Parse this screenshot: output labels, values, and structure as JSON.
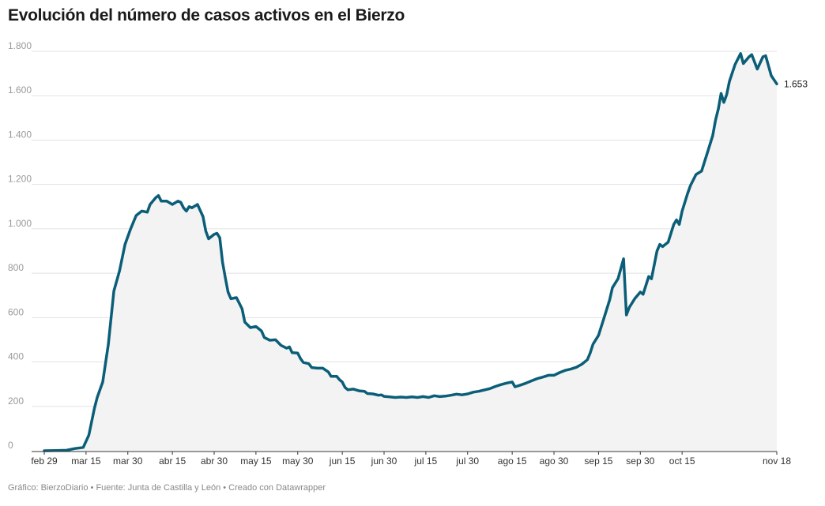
{
  "title": "Evolución del número de casos activos en el Bierzo",
  "footer": "Gráfico: BierzoDiario • Fuente: Junta de Castilla y León • Creado con Datawrapper",
  "colors": {
    "line": "#0b5e78",
    "area": "#f3f3f3",
    "grid": "#e2e2e2",
    "axis": "#333333"
  },
  "chart_data": {
    "type": "area",
    "title": "Evolución del número de casos activos en el Bierzo",
    "xlabel": "",
    "ylabel": "",
    "ylim": [
      0,
      1800
    ],
    "yticks": [
      0,
      200,
      400,
      600,
      800,
      1000,
      1200,
      1400,
      1600,
      1800
    ],
    "ytick_labels": [
      "0",
      "200",
      "400",
      "600",
      "800",
      "1.000",
      "1.200",
      "1.400",
      "1.600",
      "1.800"
    ],
    "xlim": [
      "2020-02-29",
      "2020-11-18"
    ],
    "xticks": [
      {
        "date": "2020-02-29",
        "label": "feb 29"
      },
      {
        "date": "2020-03-15",
        "label": "mar 15"
      },
      {
        "date": "2020-03-30",
        "label": "mar 30"
      },
      {
        "date": "2020-04-15",
        "label": "abr 15"
      },
      {
        "date": "2020-04-30",
        "label": "abr 30"
      },
      {
        "date": "2020-05-15",
        "label": "may 15"
      },
      {
        "date": "2020-05-30",
        "label": "may 30"
      },
      {
        "date": "2020-06-15",
        "label": "jun 15"
      },
      {
        "date": "2020-06-30",
        "label": "jun 30"
      },
      {
        "date": "2020-07-15",
        "label": "jul 15"
      },
      {
        "date": "2020-07-30",
        "label": "jul 30"
      },
      {
        "date": "2020-08-15",
        "label": "ago 15"
      },
      {
        "date": "2020-08-30",
        "label": "ago 30"
      },
      {
        "date": "2020-09-15",
        "label": "sep 15"
      },
      {
        "date": "2020-09-30",
        "label": "sep 30"
      },
      {
        "date": "2020-10-15",
        "label": "oct 15"
      },
      {
        "date": "2020-11-18",
        "label": "nov 18"
      }
    ],
    "end_label": "1.653",
    "grid": true,
    "series": [
      {
        "points": [
          [
            "2020-02-29",
            0
          ],
          [
            "2020-03-04",
            1
          ],
          [
            "2020-03-08",
            2
          ],
          [
            "2020-03-11",
            10
          ],
          [
            "2020-03-14",
            15
          ],
          [
            "2020-03-16",
            70
          ],
          [
            "2020-03-18",
            190
          ],
          [
            "2020-03-19",
            240
          ],
          [
            "2020-03-21",
            310
          ],
          [
            "2020-03-23",
            480
          ],
          [
            "2020-03-25",
            720
          ],
          [
            "2020-03-27",
            810
          ],
          [
            "2020-03-29",
            930
          ],
          [
            "2020-03-31",
            1000
          ],
          [
            "2020-04-02",
            1060
          ],
          [
            "2020-04-04",
            1080
          ],
          [
            "2020-04-06",
            1075
          ],
          [
            "2020-04-07",
            1110
          ],
          [
            "2020-04-09",
            1140
          ],
          [
            "2020-04-10",
            1150
          ],
          [
            "2020-04-11",
            1125
          ],
          [
            "2020-04-13",
            1125
          ],
          [
            "2020-04-15",
            1110
          ],
          [
            "2020-04-17",
            1125
          ],
          [
            "2020-04-18",
            1120
          ],
          [
            "2020-04-19",
            1095
          ],
          [
            "2020-04-20",
            1080
          ],
          [
            "2020-04-21",
            1100
          ],
          [
            "2020-04-22",
            1095
          ],
          [
            "2020-04-24",
            1110
          ],
          [
            "2020-04-26",
            1055
          ],
          [
            "2020-04-27",
            990
          ],
          [
            "2020-04-28",
            955
          ],
          [
            "2020-04-30",
            975
          ],
          [
            "2020-05-01",
            980
          ],
          [
            "2020-05-02",
            960
          ],
          [
            "2020-05-03",
            850
          ],
          [
            "2020-05-04",
            780
          ],
          [
            "2020-05-05",
            715
          ],
          [
            "2020-05-06",
            685
          ],
          [
            "2020-05-08",
            690
          ],
          [
            "2020-05-10",
            640
          ],
          [
            "2020-05-11",
            580
          ],
          [
            "2020-05-13",
            555
          ],
          [
            "2020-05-15",
            560
          ],
          [
            "2020-05-17",
            540
          ],
          [
            "2020-05-18",
            510
          ],
          [
            "2020-05-20",
            498
          ],
          [
            "2020-05-22",
            500
          ],
          [
            "2020-05-24",
            475
          ],
          [
            "2020-05-26",
            462
          ],
          [
            "2020-05-27",
            468
          ],
          [
            "2020-05-28",
            442
          ],
          [
            "2020-05-30",
            440
          ],
          [
            "2020-05-31",
            415
          ],
          [
            "2020-06-01",
            398
          ],
          [
            "2020-06-03",
            392
          ],
          [
            "2020-06-04",
            375
          ],
          [
            "2020-06-06",
            372
          ],
          [
            "2020-06-08",
            372
          ],
          [
            "2020-06-10",
            355
          ],
          [
            "2020-06-11",
            335
          ],
          [
            "2020-06-13",
            335
          ],
          [
            "2020-06-14",
            320
          ],
          [
            "2020-06-15",
            310
          ],
          [
            "2020-06-16",
            285
          ],
          [
            "2020-06-17",
            275
          ],
          [
            "2020-06-19",
            278
          ],
          [
            "2020-06-21",
            270
          ],
          [
            "2020-06-23",
            268
          ],
          [
            "2020-06-24",
            258
          ],
          [
            "2020-06-26",
            256
          ],
          [
            "2020-06-28",
            250
          ],
          [
            "2020-06-29",
            252
          ],
          [
            "2020-06-30",
            245
          ],
          [
            "2020-07-02",
            243
          ],
          [
            "2020-07-04",
            240
          ],
          [
            "2020-07-06",
            242
          ],
          [
            "2020-07-08",
            240
          ],
          [
            "2020-07-10",
            243
          ],
          [
            "2020-07-12",
            240
          ],
          [
            "2020-07-14",
            244
          ],
          [
            "2020-07-16",
            240
          ],
          [
            "2020-07-18",
            248
          ],
          [
            "2020-07-20",
            244
          ],
          [
            "2020-07-22",
            246
          ],
          [
            "2020-07-24",
            250
          ],
          [
            "2020-07-26",
            255
          ],
          [
            "2020-07-28",
            252
          ],
          [
            "2020-07-30",
            256
          ],
          [
            "2020-08-01",
            264
          ],
          [
            "2020-08-03",
            268
          ],
          [
            "2020-08-05",
            274
          ],
          [
            "2020-08-07",
            280
          ],
          [
            "2020-08-09",
            290
          ],
          [
            "2020-08-11",
            298
          ],
          [
            "2020-08-13",
            305
          ],
          [
            "2020-08-15",
            310
          ],
          [
            "2020-08-16",
            288
          ],
          [
            "2020-08-18",
            296
          ],
          [
            "2020-08-20",
            305
          ],
          [
            "2020-08-22",
            315
          ],
          [
            "2020-08-24",
            325
          ],
          [
            "2020-08-26",
            332
          ],
          [
            "2020-08-28",
            340
          ],
          [
            "2020-08-30",
            340
          ],
          [
            "2020-09-01",
            352
          ],
          [
            "2020-09-03",
            362
          ],
          [
            "2020-09-05",
            368
          ],
          [
            "2020-09-07",
            376
          ],
          [
            "2020-09-09",
            390
          ],
          [
            "2020-09-11",
            410
          ],
          [
            "2020-09-12",
            440
          ],
          [
            "2020-09-13",
            480
          ],
          [
            "2020-09-15",
            520
          ],
          [
            "2020-09-17",
            600
          ],
          [
            "2020-09-19",
            680
          ],
          [
            "2020-09-20",
            735
          ],
          [
            "2020-09-22",
            775
          ],
          [
            "2020-09-24",
            865
          ],
          [
            "2020-09-25",
            612
          ],
          [
            "2020-09-26",
            645
          ],
          [
            "2020-09-28",
            685
          ],
          [
            "2020-09-30",
            715
          ],
          [
            "2020-10-01",
            705
          ],
          [
            "2020-10-03",
            785
          ],
          [
            "2020-10-04",
            775
          ],
          [
            "2020-10-06",
            900
          ],
          [
            "2020-10-07",
            930
          ],
          [
            "2020-10-08",
            920
          ],
          [
            "2020-10-10",
            940
          ],
          [
            "2020-10-12",
            1020
          ],
          [
            "2020-10-13",
            1040
          ],
          [
            "2020-10-14",
            1020
          ],
          [
            "2020-10-15",
            1080
          ],
          [
            "2020-10-17",
            1160
          ],
          [
            "2020-10-18",
            1195
          ],
          [
            "2020-10-20",
            1245
          ],
          [
            "2020-10-22",
            1260
          ],
          [
            "2020-10-24",
            1340
          ],
          [
            "2020-10-26",
            1420
          ],
          [
            "2020-10-27",
            1490
          ],
          [
            "2020-10-28",
            1540
          ],
          [
            "2020-10-29",
            1610
          ],
          [
            "2020-10-30",
            1570
          ],
          [
            "2020-10-31",
            1605
          ],
          [
            "2020-11-01",
            1665
          ],
          [
            "2020-11-03",
            1740
          ],
          [
            "2020-11-05",
            1790
          ],
          [
            "2020-11-06",
            1745
          ],
          [
            "2020-11-08",
            1775
          ],
          [
            "2020-11-09",
            1785
          ],
          [
            "2020-11-11",
            1720
          ],
          [
            "2020-11-13",
            1775
          ],
          [
            "2020-11-14",
            1780
          ],
          [
            "2020-11-16",
            1690
          ],
          [
            "2020-11-18",
            1653
          ]
        ]
      }
    ]
  }
}
